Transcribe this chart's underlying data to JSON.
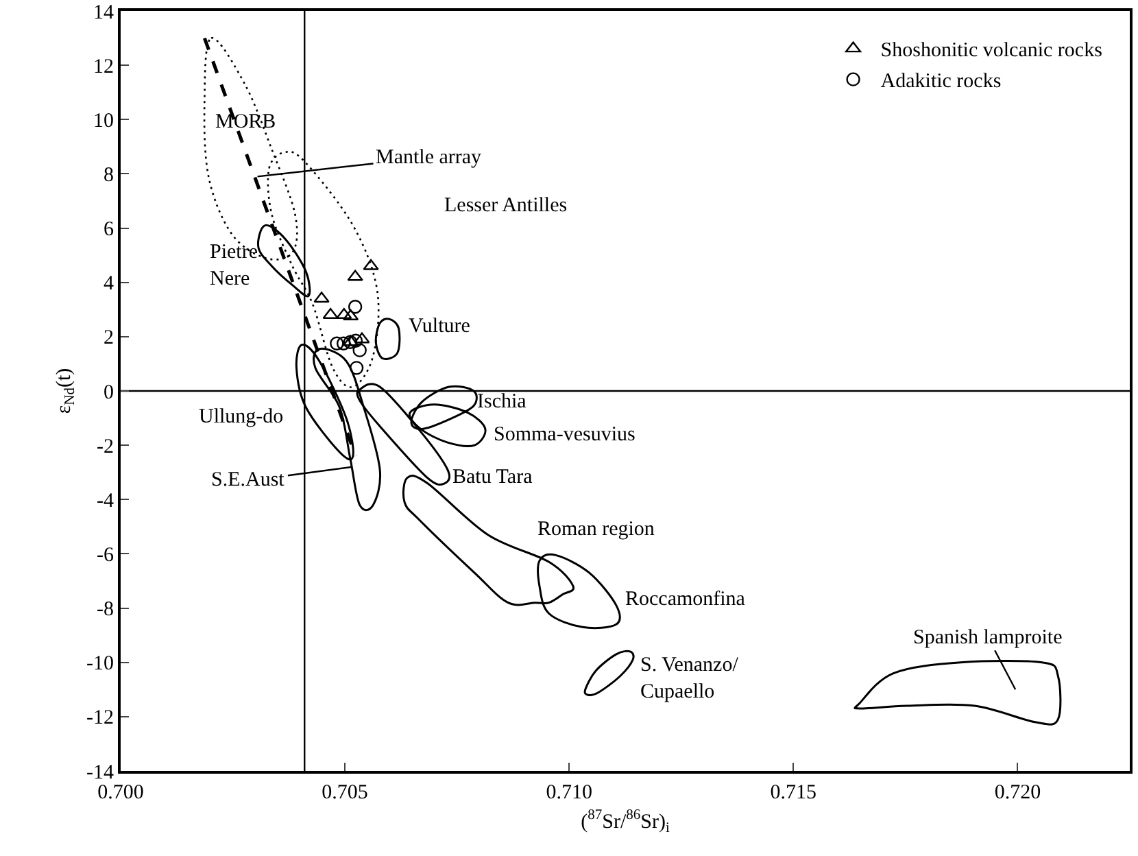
{
  "chart_data": {
    "type": "scatter",
    "xlabel": "($^{87}$Sr/$^{86}$Sr)$_{i}$",
    "ylabel": "ε$_{Nd}$(t)",
    "xlim": [
      0.7,
      0.7225
    ],
    "ylim": [
      -14,
      14
    ],
    "xticks": [
      {
        "value": 0.7,
        "label": "0.700"
      },
      {
        "value": 0.705,
        "label": "0.705"
      },
      {
        "value": 0.71,
        "label": "0.710"
      },
      {
        "value": 0.715,
        "label": "0.715"
      },
      {
        "value": 0.72,
        "label": "0.720"
      }
    ],
    "yticks": [
      -14,
      -12,
      -10,
      -8,
      -6,
      -4,
      -2,
      0,
      2,
      4,
      6,
      8,
      10,
      12,
      14
    ],
    "grid": false,
    "legend": "top right",
    "ref_lines": [
      {
        "axis": "x",
        "value": 0.7041,
        "color": "#000000"
      },
      {
        "axis": "y",
        "value": 0,
        "color": "#000000"
      }
    ],
    "series": [
      {
        "name": "Shoshonitic volcanic rocks",
        "color": "#000000",
        "marker": "triangle",
        "x": [
          0.70523,
          0.70558,
          0.70448,
          0.70468,
          0.70498,
          0.70513,
          0.70538,
          0.70513
        ],
        "values": [
          4.2,
          4.6,
          3.4,
          2.8,
          2.8,
          2.75,
          1.9,
          1.8
        ]
      },
      {
        "name": "Adakitic rocks",
        "color": "#000000",
        "marker": "circle",
        "x": [
          0.70523,
          0.70482,
          0.70497,
          0.70512,
          0.70524,
          0.70533,
          0.70526
        ],
        "values": [
          3.1,
          1.75,
          1.75,
          1.8,
          1.85,
          1.5,
          0.85
        ]
      },
      {
        "type": "line",
        "color": "#000000",
        "line_style": "dashed",
        "x": [
          0.70187,
          0.70524
        ],
        "values": [
          13.0,
          -2.4
        ]
      }
    ],
    "annotations": [
      "MORB",
      {
        "text": "Mantle array",
        "x": 0.70305,
        "y": 7.9
      },
      "Lesser Antilles",
      "Pietre\nNere",
      "Vulture",
      "Ullung-do",
      "S.E.Aust",
      "Ischia",
      "Somma-vesuvius",
      "Batu Tara",
      "Roman region",
      "Roccamonfina",
      "S. Venanzo/\nCupaello",
      "Spanish lamproite"
    ]
  }
}
